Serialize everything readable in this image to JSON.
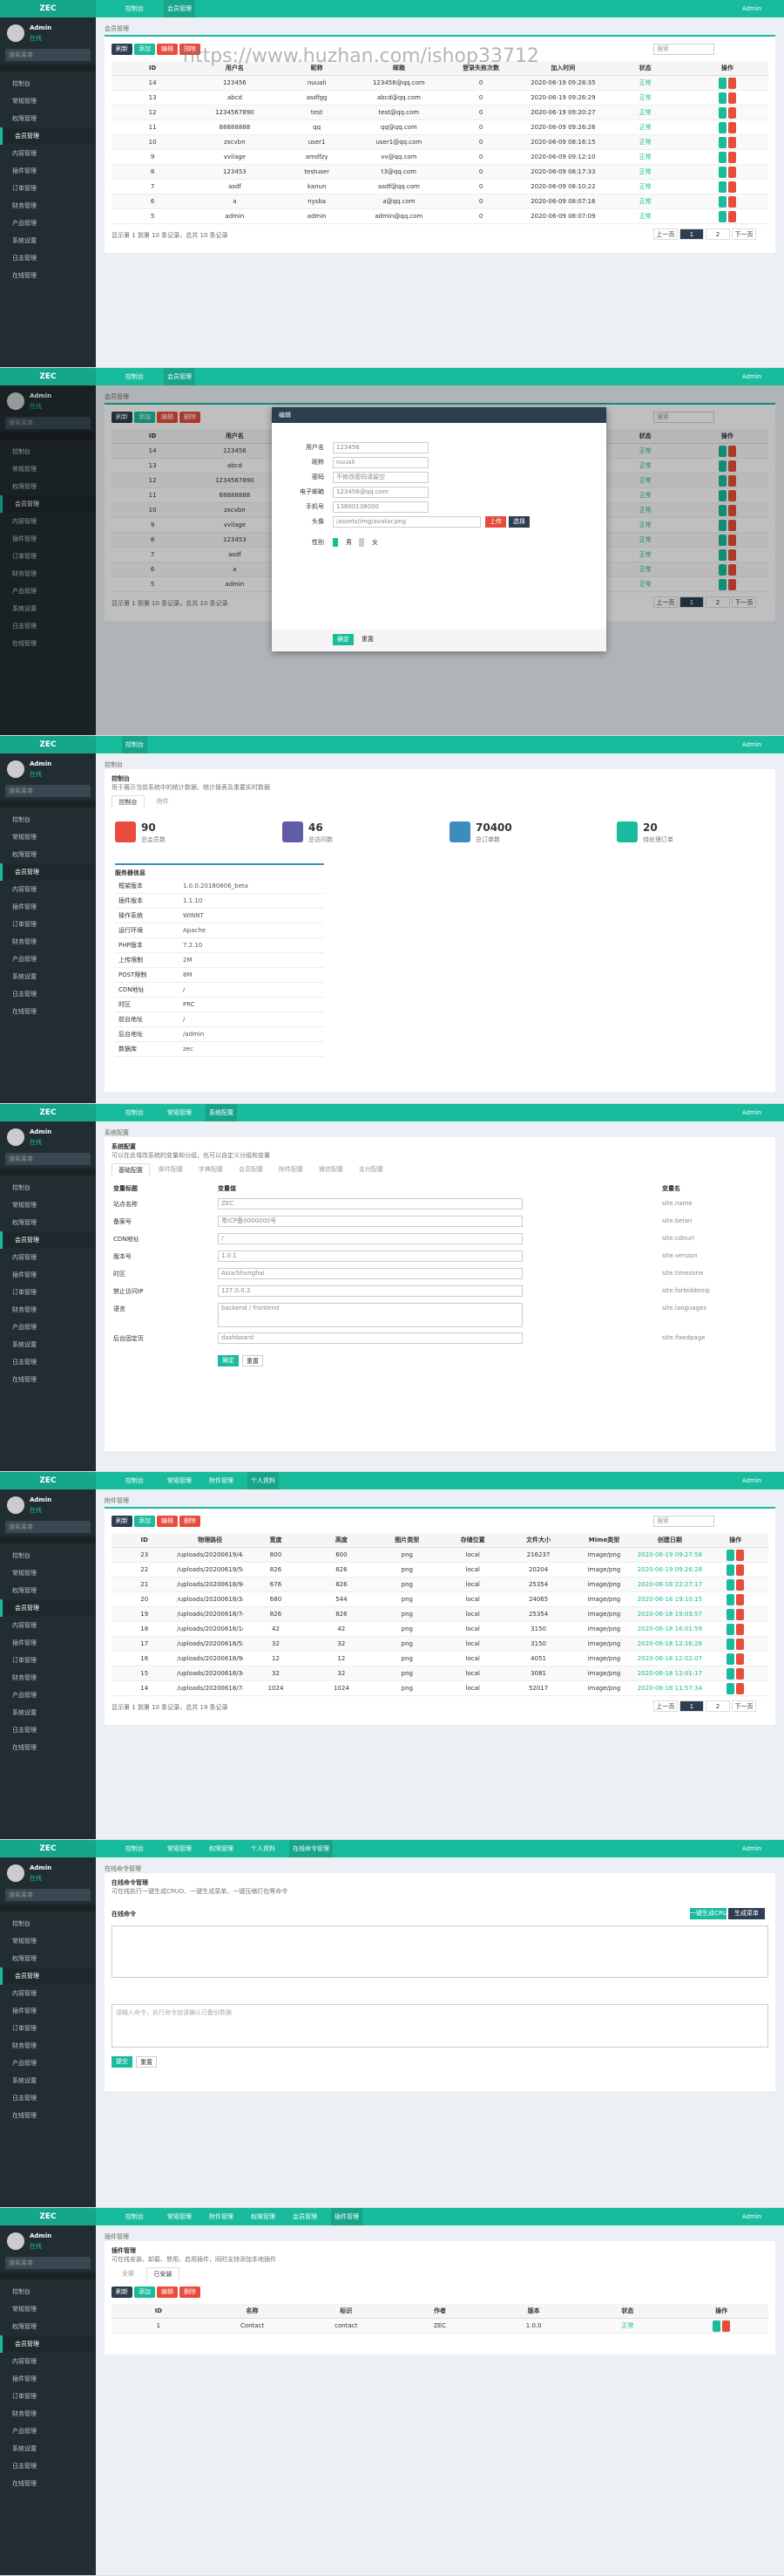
{
  "watermark": "https://www.huzhan.com/ishop33712",
  "shared": {
    "brand": "ZEC",
    "user": "Admin",
    "status": "在线",
    "search": "搜索菜单",
    "admin": "Admin",
    "menu": [
      "控制台",
      "常规管理",
      "权限管理",
      "会员管理",
      "内容管理",
      "插件管理",
      "订单管理",
      "财务管理",
      "产品管理",
      "系统设置",
      "日志管理",
      "在线管理"
    ]
  },
  "panels": [
    {
      "kind": "list",
      "tabs": [
        "控制台",
        "会员管理"
      ],
      "breadcrumb": "会员管理",
      "toolbar": [
        "刷新",
        "添加",
        "编辑",
        "删除"
      ],
      "search": "搜索",
      "table": {
        "columns": [
          "ID",
          "用户名",
          "昵称",
          "邮箱",
          "登录失败次数",
          "加入时间",
          "状态",
          "操作"
        ],
        "rows": [
          [
            "14",
            "123456",
            "nuuali",
            "123456@qq.com",
            "0",
            "2020-06-19 09:28:35",
            "正常"
          ],
          [
            "13",
            "abcd",
            "asdfgg",
            "abcd@qq.com",
            "0",
            "2020-06-19 09:26:29",
            "正常"
          ],
          [
            "12",
            "1234567890",
            "test",
            "test@qq.com",
            "0",
            "2020-06-19 09:20:27",
            "正常"
          ],
          [
            "11",
            "88888888",
            "qq",
            "qq@qq.com",
            "0",
            "2020-06-09 09:26:26",
            "正常"
          ],
          [
            "10",
            "zxcvbn",
            "user1",
            "user1@qq.com",
            "0",
            "2020-06-09 08:16:15",
            "正常"
          ],
          [
            "9",
            "vvilage",
            "amdfzy",
            "vv@qq.com",
            "0",
            "2020-06-09 09:12:10",
            "正常"
          ],
          [
            "8",
            "123453",
            "testuser",
            "t3@qq.com",
            "0",
            "2020-06-09 08:17:33",
            "正常"
          ],
          [
            "7",
            "asdf",
            "kanun",
            "asdf@qq.com",
            "0",
            "2020-06-09 08:10:22",
            "正常"
          ],
          [
            "6",
            "a",
            "nysba",
            "a@qq.com",
            "0",
            "2020-06-09 08:07:16",
            "正常"
          ],
          [
            "5",
            "admin",
            "admin",
            "admin@qq.com",
            "0",
            "2020-06-09 08:07:09",
            "正常"
          ]
        ]
      },
      "pager": "显示第 1 到第 10 条记录，总共 10 条记录",
      "pages": [
        "上一页",
        "1",
        "2",
        "下一页"
      ]
    },
    {
      "kind": "modal",
      "tabs": [
        "控制台",
        "会员管理"
      ],
      "breadcrumb": "会员管理",
      "modal": {
        "title": "编辑",
        "fields": [
          [
            "用户名",
            "123456"
          ],
          [
            "昵称",
            "nuuali"
          ],
          [
            "密码",
            "不修改密码请留空"
          ],
          [
            "电子邮箱",
            "123456@qq.com"
          ],
          [
            "手机号",
            "13800138000"
          ],
          [
            "头像",
            "/assets/img/avatar.png"
          ]
        ],
        "upload": "上传",
        "choose": "选择",
        "gender": "性别",
        "options": [
          "男",
          "女"
        ],
        "ok": "确定",
        "reset": "重置"
      }
    },
    {
      "kind": "dashboard",
      "tabs": [
        "控制台"
      ],
      "breadcrumb": "控制台",
      "heading": "控制台",
      "subheading": "用于展示当前系统中的统计数据、统计报表及重要实时数据",
      "subtabs": [
        "控制台",
        "附件"
      ],
      "stats": [
        {
          "value": 90,
          "label": "总会员数",
          "color": "#e74c3c"
        },
        {
          "value": 46,
          "label": "总访问数",
          "color": "#605ca8"
        },
        {
          "value": 70400,
          "label": "总订单数",
          "color": "#3c8dbc"
        },
        {
          "value": 20,
          "label": "待处理订单",
          "color": "#18bc9c"
        }
      ],
      "info_title": "服务器信息",
      "info": [
        [
          "框架版本",
          "1.0.0.20180806_beta"
        ],
        [
          "插件版本",
          "1.1.10"
        ],
        [
          "操作系统",
          "WINNT"
        ],
        [
          "运行环境",
          "Apache"
        ],
        [
          "PHP版本",
          "7.2.10"
        ],
        [
          "上传限制",
          "2M"
        ],
        [
          "POST限制",
          "8M"
        ],
        [
          "CDN地址",
          "/"
        ],
        [
          "时区",
          "PRC"
        ],
        [
          "前台地址",
          "/"
        ],
        [
          "后台地址",
          "/admin"
        ],
        [
          "数据库",
          "zec"
        ]
      ]
    },
    {
      "kind": "config",
      "tabs": [
        "控制台",
        "常规管理",
        "系统配置"
      ],
      "breadcrumb": "系统配置",
      "heading": "系统配置",
      "subheading": "可以在此增改系统的变量和分组，也可以自定义分组和变量",
      "subtabs": [
        "基础配置",
        "邮件配置",
        "字典配置",
        "会员配置",
        "附件配置",
        "微信配置",
        "支付配置"
      ],
      "columns": [
        "变量标题",
        "变量值",
        "变量名"
      ],
      "fields": [
        [
          "站点名称",
          "ZEC",
          "site.name"
        ],
        [
          "备案号",
          "粤ICP备0000000号",
          "site.beian"
        ],
        [
          "CDN地址",
          "/",
          "site.cdnurl"
        ],
        [
          "版本号",
          "1.0.1",
          "site.version"
        ],
        [
          "时区",
          "Asia/Shanghai",
          "site.timezone"
        ],
        [
          "禁止访问IP",
          "127.0.0.2",
          "site.forbiddenip"
        ],
        [
          "语言",
          "backend / frontend",
          "site.languages"
        ],
        [
          "后台固定页",
          "dashboard",
          "site.fixedpage"
        ]
      ],
      "ok": "确定",
      "reset": "重置"
    },
    {
      "kind": "list",
      "tabs": [
        "控制台",
        "常规管理",
        "附件管理",
        "个人资料"
      ],
      "breadcrumb": "附件管理",
      "toolbar": [
        "刷新",
        "添加",
        "编辑",
        "删除"
      ],
      "search": "搜索",
      "table": {
        "columns": [
          "ID",
          "物理路径",
          "宽度",
          "高度",
          "图片类型",
          "存储位置",
          "文件大小",
          "Mime类型",
          "创建日期",
          "操作"
        ],
        "rows": [
          [
            "23",
            "/uploads/20200619/4a1b2c3d.png",
            "800",
            "600",
            "png",
            "local",
            "216237",
            "image/png",
            "2020-06-19 09:27:58"
          ],
          [
            "22",
            "/uploads/20200619/5e6f7a8b.png",
            "826",
            "826",
            "png",
            "local",
            "20204",
            "image/png",
            "2020-06-19 09:26:28"
          ],
          [
            "21",
            "/uploads/20200618/9c0d1e2f.png",
            "676",
            "826",
            "png",
            "local",
            "25354",
            "image/png",
            "2020-06-18 22:27:17"
          ],
          [
            "20",
            "/uploads/20200618/3a4b5c6d.png",
            "680",
            "544",
            "png",
            "local",
            "24065",
            "image/png",
            "2020-06-18 19:10:15"
          ],
          [
            "19",
            "/uploads/20200618/7e8f9a0b.png",
            "826",
            "826",
            "png",
            "local",
            "25354",
            "image/png",
            "2020-06-18 19:03:57"
          ],
          [
            "18",
            "/uploads/20200618/1c2d3e4f.png",
            "42",
            "42",
            "png",
            "local",
            "3150",
            "image/png",
            "2020-06-18 16:01:59"
          ],
          [
            "17",
            "/uploads/20200618/5a6b7c8d.png",
            "32",
            "32",
            "png",
            "local",
            "3150",
            "image/png",
            "2020-06-18 12:16:28"
          ],
          [
            "16",
            "/uploads/20200618/9e0f1a2b.png",
            "12",
            "12",
            "png",
            "local",
            "4051",
            "image/png",
            "2020-06-18 12:02:07"
          ],
          [
            "15",
            "/uploads/20200618/3c4d5e6f.png",
            "32",
            "32",
            "png",
            "local",
            "3081",
            "image/png",
            "2020-06-18 12:01:17"
          ],
          [
            "14",
            "/uploads/20200618/7a8b9c0d.png",
            "1024",
            "1024",
            "png",
            "local",
            "52017",
            "image/png",
            "2020-06-18 11:57:34"
          ]
        ]
      },
      "pager": "显示第 1 到第 10 条记录，总共 19 条记录",
      "pages": [
        "上一页",
        "1",
        "2",
        "下一页"
      ]
    },
    {
      "kind": "editor",
      "tabs": [
        "控制台",
        "常规管理",
        "权限管理",
        "个人资料",
        "在线命令管理"
      ],
      "breadcrumb": "在线命令管理",
      "heading": "在线命令管理",
      "subheading": "可在线执行一键生成CRUD、一键生成菜单、一键压缩打包等命令",
      "label": "在线命令",
      "actions": [
        "一键生成CRUD",
        "生成菜单"
      ],
      "placeholder": "请输入命令，执行命令前请确认已备份数据",
      "ok": "提交",
      "reset": "重置"
    },
    {
      "kind": "plugins",
      "tabs": [
        "控制台",
        "常规管理",
        "附件管理",
        "权限管理",
        "会员管理",
        "插件管理"
      ],
      "breadcrumb": "插件管理",
      "heading": "插件管理",
      "subheading": "可在线安装、卸载、禁用、启用插件，同时支持添加本地插件",
      "subtabs": [
        "全部",
        "已安装"
      ],
      "toolbar": [
        "刷新",
        "添加",
        "编辑",
        "删除"
      ],
      "table": {
        "columns": [
          "ID",
          "名称",
          "标识",
          "作者",
          "版本",
          "状态",
          "操作"
        ],
        "rows": [
          [
            "1",
            "Contact",
            "contact",
            "ZEC",
            "1.0.0",
            "正常"
          ]
        ]
      }
    }
  ]
}
